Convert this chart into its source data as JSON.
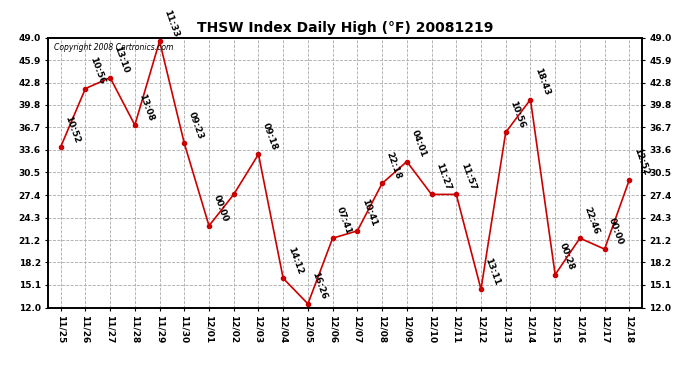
{
  "title": "THSW Index Daily High (°F) 20081219",
  "copyright": "Copyright 2008 Cartronics.com",
  "x_labels": [
    "11/25",
    "11/26",
    "11/27",
    "11/28",
    "11/29",
    "11/30",
    "12/01",
    "12/02",
    "12/03",
    "12/04",
    "12/05",
    "12/06",
    "12/07",
    "12/08",
    "12/09",
    "12/10",
    "12/11",
    "12/12",
    "12/13",
    "12/14",
    "12/15",
    "12/16",
    "12/17",
    "12/18"
  ],
  "y_values": [
    34.0,
    42.0,
    43.5,
    37.0,
    48.5,
    34.5,
    23.2,
    27.5,
    33.0,
    16.0,
    12.5,
    21.5,
    22.5,
    29.0,
    32.0,
    27.5,
    27.5,
    14.5,
    36.0,
    40.5,
    16.5,
    21.5,
    20.0,
    29.5
  ],
  "time_labels": [
    "10:52",
    "10:56",
    "13:10",
    "13:08",
    "11:33",
    "09:23",
    "00:00",
    "",
    "09:18",
    "14:12",
    "16:26",
    "07:41",
    "10:41",
    "22:18",
    "04:01",
    "11:27",
    "11:57",
    "13:11",
    "10:56",
    "18:43",
    "00:28",
    "22:46",
    "00:00",
    "12:52"
  ],
  "y_ticks": [
    12.0,
    15.1,
    18.2,
    21.2,
    24.3,
    27.4,
    30.5,
    33.6,
    36.7,
    39.8,
    42.8,
    45.9,
    49.0
  ],
  "y_min": 12.0,
  "y_max": 49.0,
  "line_color": "#cc0000",
  "marker_color": "#cc0000",
  "background_color": "#ffffff",
  "grid_color": "#aaaaaa",
  "title_fontsize": 10,
  "tick_fontsize": 6.5,
  "annotation_fontsize": 6.5,
  "copyright_fontsize": 5.5
}
